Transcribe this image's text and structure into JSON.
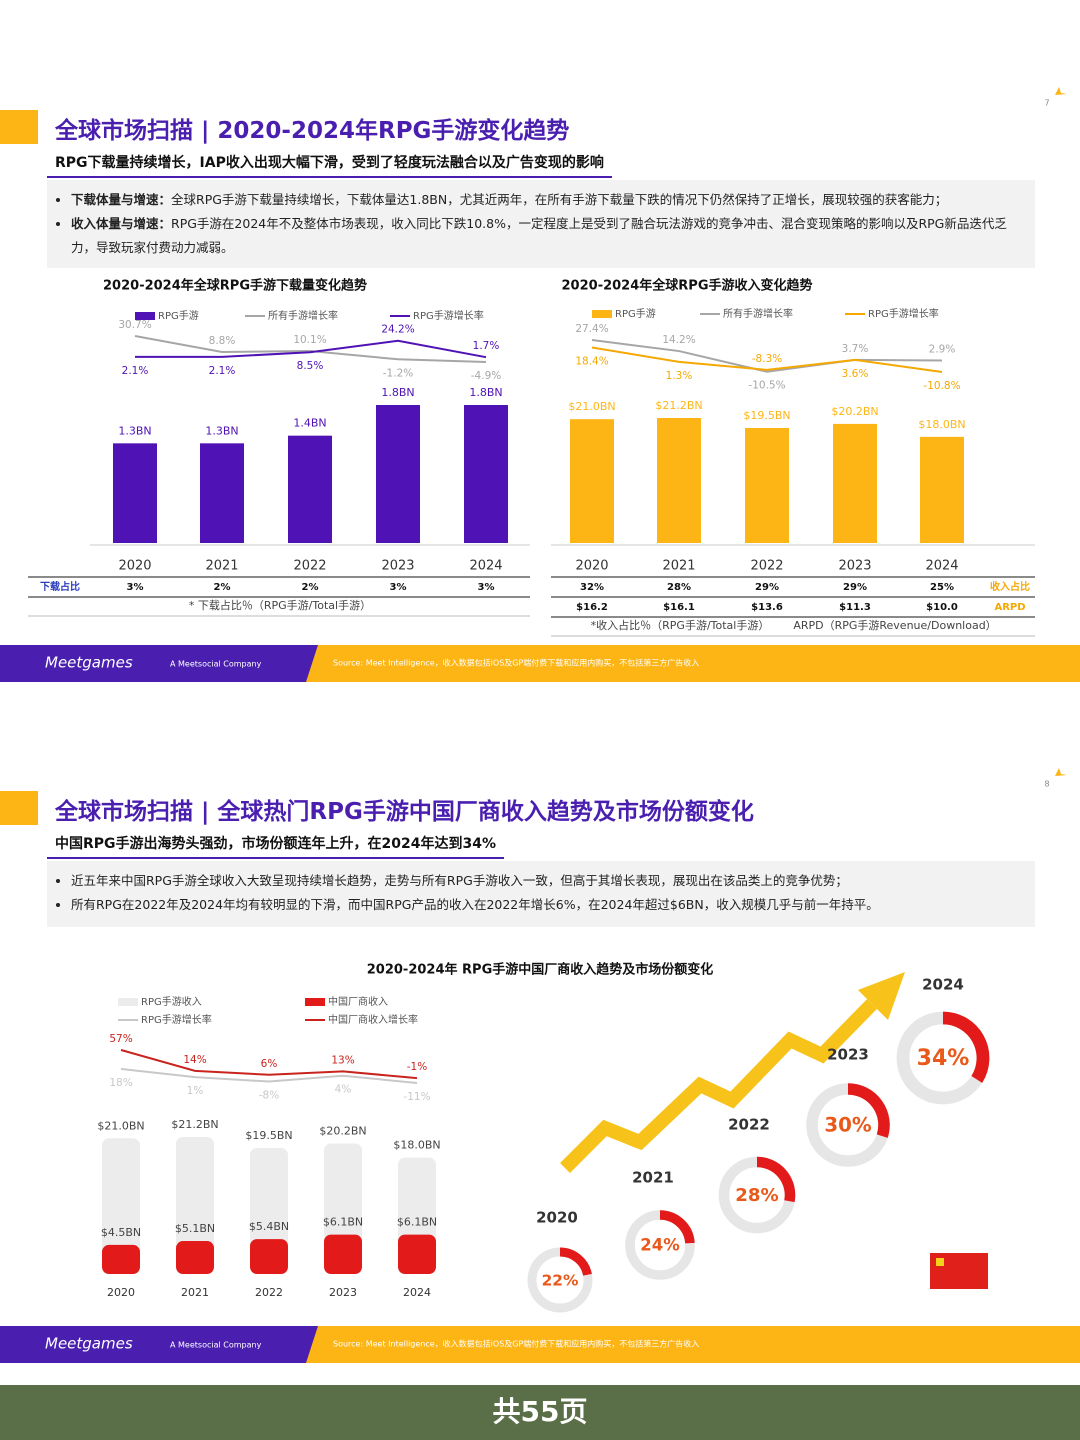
{
  "slides": [
    {
      "page_number": "7",
      "title": "全球市场扫描 | 2020-2024年RPG手游变化趋势",
      "subtitle": "RPG下载量持续增长，IAP收入出现大幅下滑，受到了轻度玩法融合以及广告变现的影响",
      "bullets": [
        {
          "lead": "下载体量与增速：",
          "text": "全球RPG手游下载量持续增长，下载体量达1.8BN，尤其近两年，在所有手游下载量下跌的情况下仍然保持了正增长，展现较强的获客能力；"
        },
        {
          "lead": "收入体量与增速：",
          "text": "RPG手游在2024年不及整体市场表现，收入同比下跌10.8%，一定程度上是受到了融合玩法游戏的竞争冲击、混合变现策略的影响以及RPG新品迭代乏力，导致玩家付费动力减弱。"
        }
      ],
      "footer": {
        "brand": "Meetgames",
        "tagline": "A Meetsocial Company",
        "source": "Source: Meet Intelligence，收入数据包括iOS及GP端付费下载和应用内购买，不包括第三方广告收入"
      }
    },
    {
      "page_number": "8",
      "title": "全球市场扫描 | 全球热门RPG手游中国厂商收入趋势及市场份额变化",
      "subtitle": "中国RPG手游出海势头强劲，市场份额连年上升，在2024年达到34%",
      "bullets": [
        {
          "text": "近五年来中国RPG手游全球收入大致呈现持续增长趋势，走势与所有RPG手游收入一致，但高于其增长表现，展现出在该品类上的竞争优势；"
        },
        {
          "text": "所有RPG在2022年及2024年均有较明显的下滑，而中国RPG产品的收入在2022年增长6%，在2024年超过$6BN，收入规模几乎与前一年持平。"
        }
      ],
      "footer": {
        "brand": "Meetgames",
        "tagline": "A Meetsocial Company",
        "source": "Source: Meet Intelligence，收入数据包括iOS及GP端付费下载和应用内购买，不包括第三方广告收入"
      }
    }
  ],
  "page_count_label": "共55页",
  "chart_data": [
    {
      "type": "bar",
      "title": "2020-2024年全球RPG手游下载量变化趋势",
      "categories": [
        "2020",
        "2021",
        "2022",
        "2023",
        "2024"
      ],
      "series": [
        {
          "name": "RPG手游",
          "type": "bar",
          "color": "#4f12b5",
          "values": [
            1.3,
            1.3,
            1.4,
            1.8,
            1.8
          ],
          "value_labels": [
            "1.3BN",
            "1.3BN",
            "1.4BN",
            "1.8BN",
            "1.8BN"
          ]
        },
        {
          "name": "所有手游增长率",
          "type": "line",
          "color": "#a6a6a6",
          "values": [
            30.7,
            8.8,
            10.1,
            -1.2,
            -4.9
          ],
          "value_labels": [
            "30.7%",
            "8.8%",
            "10.1%",
            "-1.2%",
            "-4.9%"
          ]
        },
        {
          "name": "RPG手游增长率",
          "type": "line",
          "color": "#4f12b5",
          "values": [
            2.1,
            2.1,
            8.5,
            24.2,
            1.7
          ],
          "value_labels": [
            "2.1%",
            "2.1%",
            "8.5%",
            "24.2%",
            "1.7%"
          ]
        }
      ],
      "table": [
        {
          "label": "下载占比",
          "values": [
            "3%",
            "2%",
            "2%",
            "3%",
            "3%"
          ]
        }
      ],
      "notes": [
        "* 下载占比％（RPG手游/Total手游）"
      ]
    },
    {
      "type": "bar",
      "title": "2020-2024年全球RPG手游收入变化趋势",
      "categories": [
        "2020",
        "2021",
        "2022",
        "2023",
        "2024"
      ],
      "series": [
        {
          "name": "RPG手游",
          "type": "bar",
          "color": "#fdb515",
          "values": [
            21.0,
            21.2,
            19.5,
            20.2,
            18.0
          ],
          "value_labels": [
            "$21.0BN",
            "$21.2BN",
            "$19.5BN",
            "$20.2BN",
            "$18.0BN"
          ]
        },
        {
          "name": "所有手游增长率",
          "type": "line",
          "color": "#a6a6a6",
          "values": [
            27.4,
            14.2,
            -10.5,
            3.7,
            2.9
          ],
          "value_labels": [
            "27.4%",
            "14.2%",
            "-10.5%",
            "3.7%",
            "2.9%"
          ]
        },
        {
          "name": "RPG手游增长率",
          "type": "line",
          "color": "#f5a800",
          "values": [
            18.4,
            1.3,
            -8.3,
            3.6,
            -10.8
          ],
          "value_labels": [
            "18.4%",
            "1.3%",
            "-8.3%",
            "3.6%",
            "-10.8%"
          ]
        }
      ],
      "table": [
        {
          "label": "收入占比",
          "values": [
            "32%",
            "28%",
            "29%",
            "29%",
            "25%"
          ]
        },
        {
          "label": "ARPD",
          "values": [
            "$16.2",
            "$16.1",
            "$13.6",
            "$11.3",
            "$10.0"
          ]
        }
      ],
      "notes": [
        "*收入占比％（RPG手游/Total手游）",
        "ARPD（RPG手游Revenue/Download）"
      ]
    },
    {
      "type": "bar",
      "title": "2020-2024年 RPG手游中国厂商收入趋势及市场份额变化",
      "categories": [
        "2020",
        "2021",
        "2022",
        "2023",
        "2024"
      ],
      "series": [
        {
          "name": "RPG手游收入",
          "type": "bar",
          "color": "#ececec",
          "values": [
            21.0,
            21.2,
            19.5,
            20.2,
            18.0
          ],
          "value_labels": [
            "$21.0BN",
            "$21.2BN",
            "$19.5BN",
            "$20.2BN",
            "$18.0BN"
          ]
        },
        {
          "name": "RPG手游增长率",
          "type": "line",
          "color": "#c8c8c8",
          "values": [
            18,
            1,
            -8,
            4,
            -11
          ],
          "value_labels": [
            "18%",
            "1%",
            "-8%",
            "4%",
            "-11%"
          ]
        },
        {
          "name": "中国厂商收入",
          "type": "bar",
          "color": "#e31a1a",
          "values": [
            4.5,
            5.1,
            5.4,
            6.1,
            6.1
          ],
          "value_labels": [
            "$4.5BN",
            "$5.1BN",
            "$5.4BN",
            "$6.1BN",
            "$6.1BN"
          ]
        },
        {
          "name": "中国厂商收入增长率",
          "type": "line",
          "color": "#c9231d",
          "values": [
            57,
            14,
            6,
            13,
            -1
          ],
          "value_labels": [
            "57%",
            "14%",
            "6%",
            "13%",
            "-1%"
          ]
        }
      ]
    },
    {
      "type": "donut",
      "categories": [
        "2020",
        "2021",
        "2022",
        "2023",
        "2024"
      ],
      "values": [
        22,
        24,
        28,
        30,
        34
      ],
      "value_labels": [
        "22%",
        "24%",
        "28%",
        "30%",
        "34%"
      ],
      "color": "#e31a1a"
    }
  ]
}
